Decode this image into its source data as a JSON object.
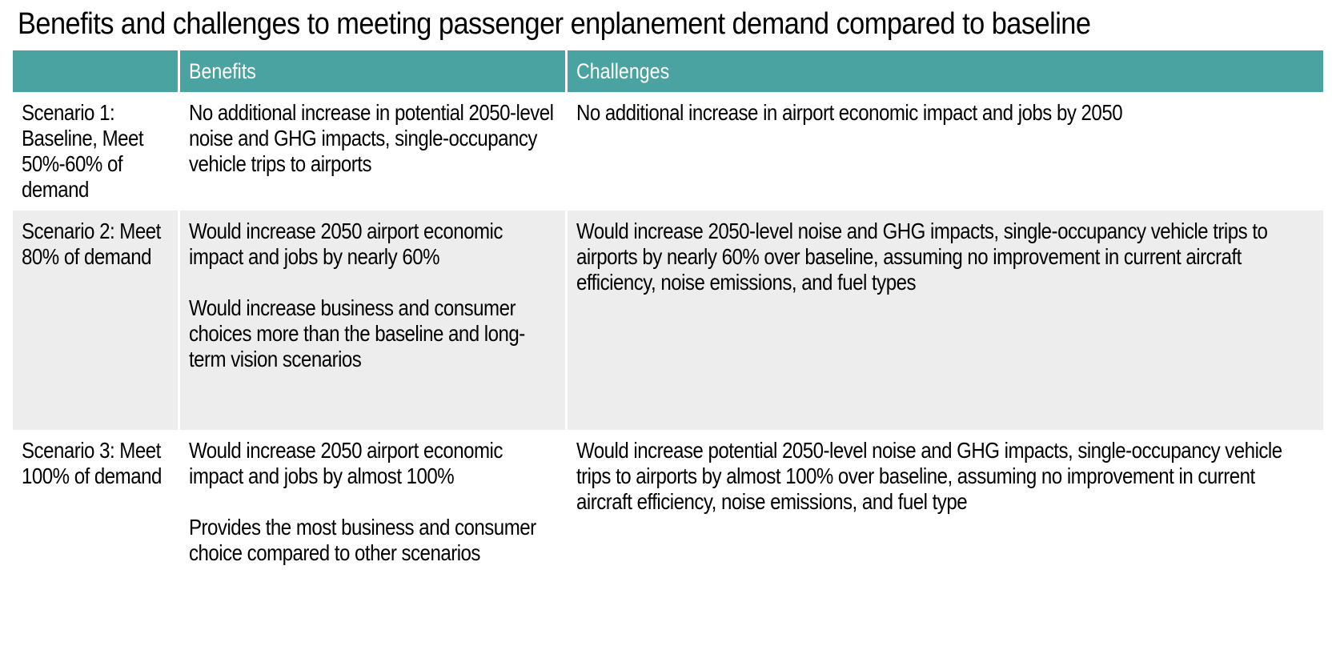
{
  "title": "Benefits and challenges to meeting passenger enplanement demand compared to baseline",
  "colors": {
    "header_bg": "#4aa3a0",
    "header_text": "#ffffff",
    "shaded_row": "#ededed"
  },
  "table": {
    "headers": [
      "",
      "Benefits",
      "Challenges"
    ],
    "rows": [
      {
        "scenario": "Scenario 1: Baseline, Meet 50%-60% of demand",
        "benefits": [
          "No additional increase in potential 2050-level noise and GHG impacts, single-occupancy vehicle trips to airports"
        ],
        "challenges": [
          "No additional increase in airport economic impact and jobs by 2050"
        ]
      },
      {
        "scenario": "Scenario 2: Meet 80% of demand",
        "benefits": [
          "Would increase 2050 airport economic impact and jobs by nearly 60%",
          "Would increase business and consumer choices more than the baseline and long-term vision scenarios"
        ],
        "challenges": [
          "Would increase 2050-level noise and GHG impacts, single-occupancy vehicle trips to airports by nearly 60% over baseline, assuming no improvement in current aircraft efficiency, noise emissions, and fuel types"
        ]
      },
      {
        "scenario": "Scenario 3: Meet 100% of demand",
        "benefits": [
          "Would increase 2050 airport economic impact and jobs by almost 100%",
          "Provides the most business and consumer choice compared to other scenarios"
        ],
        "challenges": [
          "Would increase potential 2050-level noise and GHG impacts, single-occupancy vehicle trips to airports by almost 100% over baseline, assuming no improvement in current aircraft efficiency, noise emissions, and fuel type"
        ]
      }
    ]
  }
}
